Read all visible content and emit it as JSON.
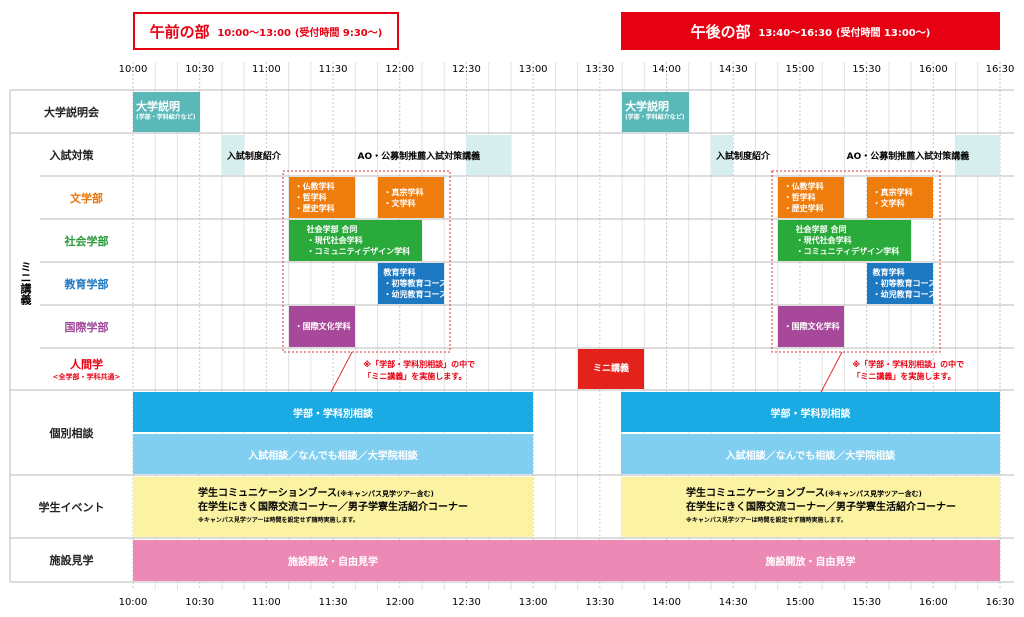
{
  "sessions": [
    {
      "title": "午前の部",
      "time": "10:00〜13:00",
      "note": "(受付時間 9:30〜)"
    },
    {
      "title": "午後の部",
      "time": "13:40〜16:30",
      "note": "(受付時間 13:00〜)"
    }
  ],
  "times": [
    "10:00",
    "10:30",
    "11:00",
    "11:30",
    "12:00",
    "12:30",
    "13:00",
    "13:30",
    "14:00",
    "14:30",
    "15:00",
    "15:30",
    "16:00",
    "16:30"
  ],
  "rows": {
    "briefing": "大学説明会",
    "exam": "入試対策",
    "mini": "ミニ講義",
    "lit": "文学部",
    "soc": "社会学部",
    "edu": "教育学部",
    "intl": "国際学部",
    "human": "人間学",
    "human_note": "<全学部・学科共通>",
    "consult": "個別相談",
    "event": "学生イベント",
    "facility": "施設見学"
  },
  "blocks": {
    "briefing": [
      "大学説明",
      "(学部・学科紹介など)"
    ],
    "exam_intro": "入試制度紹介",
    "exam_ao": "AO・公募制推薦入試対策講義",
    "lit1": [
      "・仏教学科",
      "・哲学科",
      "・歴史学科"
    ],
    "lit2": [
      "・真宗学科",
      "・文学科"
    ],
    "soc": [
      "社会学部 合同",
      "・現代社会学科",
      "・コミュニティデザイン学科"
    ],
    "edu": [
      "教育学科",
      "・初等教育コース",
      "・幼児教育コース"
    ],
    "intl": "・国際文化学科",
    "mini": "ミニ講義",
    "note": [
      "※「学部・学科別相談」の中で",
      "「ミニ講義」を実施します。"
    ],
    "consult1": "学部・学科別相談",
    "consult2": "入試相談／なんでも相談／大学院相談",
    "event": [
      "学生コミュニケーションブース",
      "(※キャンパス見学ツアー含む)",
      "在学生にきく国際交流コーナー／男子学寮生活紹介コーナー",
      "※キャンパス見学ツアーは時間を設定せず随時実施します。"
    ],
    "facility": "施設開放・自由見学"
  }
}
